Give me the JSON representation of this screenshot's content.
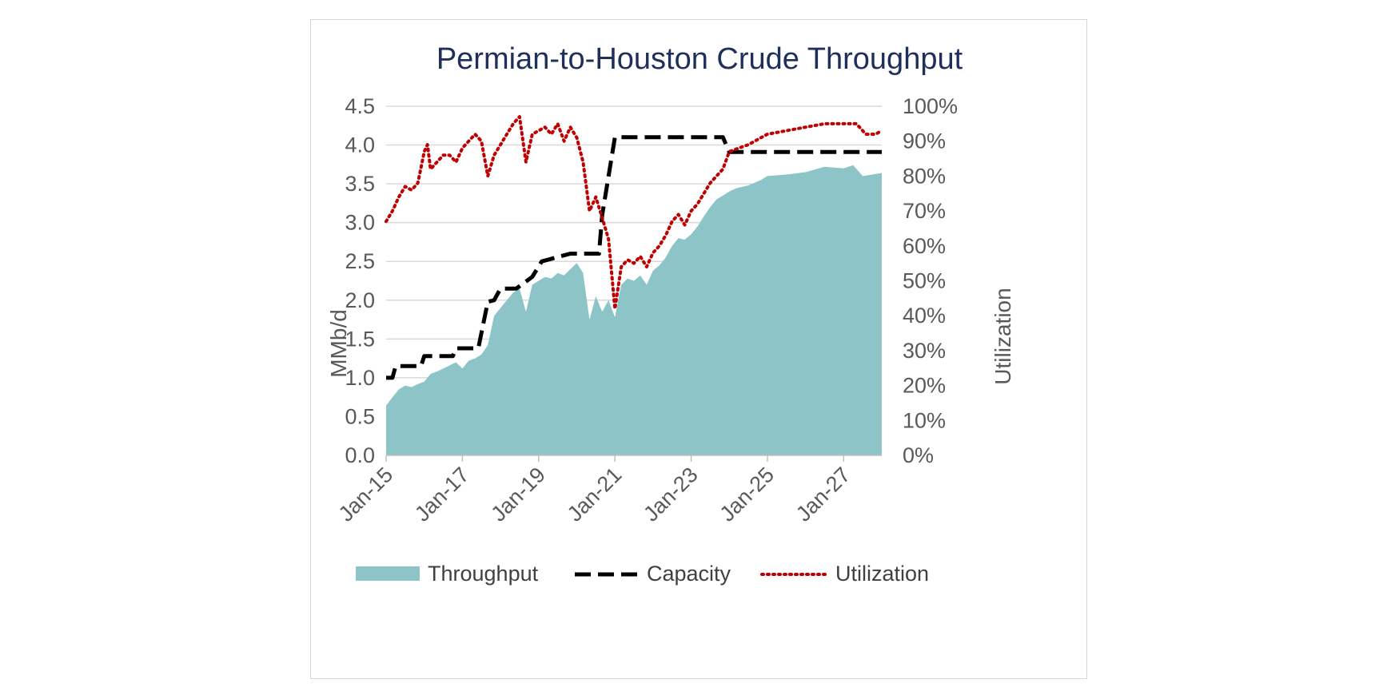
{
  "chart_data": {
    "type": "area",
    "title": "Permian-to-Houston Crude Throughput",
    "ylabel": "MMb/d",
    "y2label": "Utilization",
    "ylim": [
      0,
      4.5
    ],
    "y2lim": [
      0,
      1.0
    ],
    "xlim": [
      "2015-01",
      "2028-01"
    ],
    "grid": true,
    "legend_position": "bottom",
    "y_ticks": [
      "0.0",
      "0.5",
      "1.0",
      "1.5",
      "2.0",
      "2.5",
      "3.0",
      "3.5",
      "4.0",
      "4.5"
    ],
    "y2_ticks": [
      "0%",
      "10%",
      "20%",
      "30%",
      "40%",
      "50%",
      "60%",
      "70%",
      "80%",
      "90%",
      "100%"
    ],
    "x_ticks": [
      {
        "date": "2015-01",
        "label": "Jan-15"
      },
      {
        "date": "2017-01",
        "label": "Jan-17"
      },
      {
        "date": "2019-01",
        "label": "Jan-19"
      },
      {
        "date": "2021-01",
        "label": "Jan-21"
      },
      {
        "date": "2023-01",
        "label": "Jan-23"
      },
      {
        "date": "2025-01",
        "label": "Jan-25"
      },
      {
        "date": "2027-01",
        "label": "Jan-27"
      }
    ],
    "colors": {
      "throughput": "#8dc4c8",
      "capacity": "#000000",
      "utilization": "#c00000",
      "grid": "#d9d9d9",
      "title": "#1f2f5c"
    },
    "series": [
      {
        "name": "Throughput",
        "kind": "area",
        "axis": "left",
        "points": [
          [
            "2015-01",
            0.64
          ],
          [
            "2015-03",
            0.75
          ],
          [
            "2015-05",
            0.85
          ],
          [
            "2015-07",
            0.9
          ],
          [
            "2015-09",
            0.88
          ],
          [
            "2015-11",
            0.92
          ],
          [
            "2016-01",
            0.95
          ],
          [
            "2016-03",
            1.05
          ],
          [
            "2016-05",
            1.08
          ],
          [
            "2016-07",
            1.12
          ],
          [
            "2016-09",
            1.16
          ],
          [
            "2016-11",
            1.2
          ],
          [
            "2017-01",
            1.12
          ],
          [
            "2017-03",
            1.22
          ],
          [
            "2017-05",
            1.25
          ],
          [
            "2017-07",
            1.3
          ],
          [
            "2017-09",
            1.42
          ],
          [
            "2017-11",
            1.8
          ],
          [
            "2018-01",
            1.9
          ],
          [
            "2018-03",
            2.0
          ],
          [
            "2018-05",
            2.1
          ],
          [
            "2018-07",
            2.15
          ],
          [
            "2018-09",
            1.85
          ],
          [
            "2018-11",
            2.2
          ],
          [
            "2019-01",
            2.25
          ],
          [
            "2019-03",
            2.3
          ],
          [
            "2019-05",
            2.28
          ],
          [
            "2019-07",
            2.35
          ],
          [
            "2019-09",
            2.32
          ],
          [
            "2019-11",
            2.4
          ],
          [
            "2020-01",
            2.48
          ],
          [
            "2020-03",
            2.35
          ],
          [
            "2020-05",
            1.75
          ],
          [
            "2020-07",
            2.05
          ],
          [
            "2020-09",
            1.85
          ],
          [
            "2020-11",
            2.0
          ],
          [
            "2021-01",
            1.78
          ],
          [
            "2021-03",
            2.2
          ],
          [
            "2021-05",
            2.28
          ],
          [
            "2021-07",
            2.25
          ],
          [
            "2021-09",
            2.32
          ],
          [
            "2021-11",
            2.2
          ],
          [
            "2022-01",
            2.38
          ],
          [
            "2022-03",
            2.45
          ],
          [
            "2022-05",
            2.55
          ],
          [
            "2022-07",
            2.7
          ],
          [
            "2022-09",
            2.8
          ],
          [
            "2022-11",
            2.78
          ],
          [
            "2023-01",
            2.85
          ],
          [
            "2023-03",
            2.95
          ],
          [
            "2023-05",
            3.08
          ],
          [
            "2023-07",
            3.2
          ],
          [
            "2023-09",
            3.3
          ],
          [
            "2023-11",
            3.35
          ],
          [
            "2024-01",
            3.4
          ],
          [
            "2024-03",
            3.44
          ],
          [
            "2024-07",
            3.48
          ],
          [
            "2024-11",
            3.55
          ],
          [
            "2025-01",
            3.6
          ],
          [
            "2025-07",
            3.62
          ],
          [
            "2026-01",
            3.65
          ],
          [
            "2026-07",
            3.72
          ],
          [
            "2027-01",
            3.7
          ],
          [
            "2027-04",
            3.74
          ],
          [
            "2027-07",
            3.6
          ],
          [
            "2027-10",
            3.62
          ],
          [
            "2028-01",
            3.64
          ]
        ]
      },
      {
        "name": "Capacity",
        "kind": "line",
        "axis": "left",
        "points": [
          [
            "2015-01",
            1.0
          ],
          [
            "2015-03",
            1.0
          ],
          [
            "2015-04",
            1.15
          ],
          [
            "2015-12",
            1.15
          ],
          [
            "2016-01",
            1.28
          ],
          [
            "2016-10",
            1.28
          ],
          [
            "2016-11",
            1.38
          ],
          [
            "2017-06",
            1.38
          ],
          [
            "2017-09",
            1.98
          ],
          [
            "2017-11",
            2.0
          ],
          [
            "2018-01",
            2.15
          ],
          [
            "2018-06",
            2.15
          ],
          [
            "2018-11",
            2.3
          ],
          [
            "2019-02",
            2.5
          ],
          [
            "2019-11",
            2.6
          ],
          [
            "2020-08",
            2.6
          ],
          [
            "2020-09",
            3.1
          ],
          [
            "2021-01",
            4.1
          ],
          [
            "2023-11",
            4.1
          ],
          [
            "2024-01",
            3.91
          ],
          [
            "2028-01",
            3.91
          ]
        ]
      },
      {
        "name": "Utilization",
        "kind": "line",
        "axis": "right",
        "points": [
          [
            "2015-01",
            0.67
          ],
          [
            "2015-03",
            0.7
          ],
          [
            "2015-05",
            0.74
          ],
          [
            "2015-07",
            0.77
          ],
          [
            "2015-09",
            0.76
          ],
          [
            "2015-11",
            0.78
          ],
          [
            "2016-01",
            0.87
          ],
          [
            "2016-02",
            0.89
          ],
          [
            "2016-03",
            0.82
          ],
          [
            "2016-05",
            0.84
          ],
          [
            "2016-07",
            0.86
          ],
          [
            "2016-09",
            0.86
          ],
          [
            "2016-11",
            0.84
          ],
          [
            "2017-01",
            0.88
          ],
          [
            "2017-03",
            0.9
          ],
          [
            "2017-05",
            0.92
          ],
          [
            "2017-07",
            0.9
          ],
          [
            "2017-09",
            0.8
          ],
          [
            "2017-11",
            0.86
          ],
          [
            "2018-01",
            0.89
          ],
          [
            "2018-03",
            0.92
          ],
          [
            "2018-05",
            0.95
          ],
          [
            "2018-07",
            0.97
          ],
          [
            "2018-09",
            0.84
          ],
          [
            "2018-11",
            0.92
          ],
          [
            "2019-01",
            0.93
          ],
          [
            "2019-03",
            0.94
          ],
          [
            "2019-05",
            0.92
          ],
          [
            "2019-07",
            0.95
          ],
          [
            "2019-09",
            0.9
          ],
          [
            "2019-11",
            0.94
          ],
          [
            "2020-01",
            0.91
          ],
          [
            "2020-03",
            0.84
          ],
          [
            "2020-05",
            0.7
          ],
          [
            "2020-07",
            0.74
          ],
          [
            "2020-09",
            0.68
          ],
          [
            "2020-11",
            0.62
          ],
          [
            "2021-01",
            0.42
          ],
          [
            "2021-03",
            0.54
          ],
          [
            "2021-05",
            0.56
          ],
          [
            "2021-07",
            0.55
          ],
          [
            "2021-09",
            0.57
          ],
          [
            "2021-11",
            0.54
          ],
          [
            "2022-01",
            0.58
          ],
          [
            "2022-03",
            0.6
          ],
          [
            "2022-05",
            0.63
          ],
          [
            "2022-07",
            0.67
          ],
          [
            "2022-09",
            0.69
          ],
          [
            "2022-11",
            0.66
          ],
          [
            "2023-01",
            0.7
          ],
          [
            "2023-03",
            0.72
          ],
          [
            "2023-05",
            0.75
          ],
          [
            "2023-07",
            0.78
          ],
          [
            "2023-09",
            0.8
          ],
          [
            "2023-11",
            0.82
          ],
          [
            "2024-01",
            0.87
          ],
          [
            "2024-04",
            0.88
          ],
          [
            "2024-07",
            0.89
          ],
          [
            "2024-11",
            0.91
          ],
          [
            "2025-01",
            0.92
          ],
          [
            "2025-07",
            0.93
          ],
          [
            "2026-01",
            0.94
          ],
          [
            "2026-07",
            0.95
          ],
          [
            "2027-01",
            0.95
          ],
          [
            "2027-05",
            0.95
          ],
          [
            "2027-08",
            0.92
          ],
          [
            "2027-11",
            0.92
          ],
          [
            "2028-01",
            0.93
          ]
        ]
      }
    ]
  }
}
